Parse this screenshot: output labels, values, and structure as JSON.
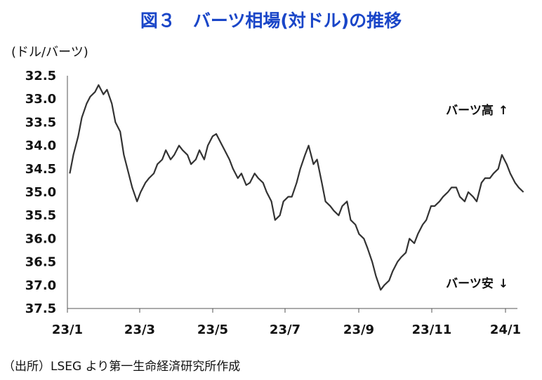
{
  "chart_data": {
    "type": "line",
    "title": "図３　バーツ相場(対ドル)の推移",
    "unit_label": "(ドル/バーツ)",
    "source": "（出所）LSEG より第一生命経済研究所作成",
    "yaxis_inverted": true,
    "ylim": [
      32.5,
      37.5
    ],
    "yticks": [
      "32.5",
      "33.0",
      "33.5",
      "34.0",
      "34.5",
      "35.0",
      "35.5",
      "36.0",
      "36.5",
      "37.0",
      "37.5"
    ],
    "xticks": [
      "23/1",
      "23/3",
      "23/5",
      "23/7",
      "23/9",
      "23/11",
      "24/1"
    ],
    "grid": false,
    "annotations": [
      {
        "text": "バーツ高",
        "arrow": "↑"
      },
      {
        "text": "バーツ安",
        "arrow": "↓"
      }
    ],
    "line_color": "#333333",
    "series": [
      {
        "x": [
          "2023-01-03",
          "2023-01-06",
          "2023-01-10",
          "2023-01-13",
          "2023-01-17",
          "2023-01-20",
          "2023-01-24",
          "2023-01-27",
          "2023-01-31",
          "2023-02-03",
          "2023-02-07",
          "2023-02-10",
          "2023-02-14",
          "2023-02-17",
          "2023-02-21",
          "2023-02-24",
          "2023-02-28",
          "2023-03-03",
          "2023-03-07",
          "2023-03-10",
          "2023-03-14",
          "2023-03-17",
          "2023-03-21",
          "2023-03-24",
          "2023-03-28",
          "2023-03-31",
          "2023-04-04",
          "2023-04-07",
          "2023-04-11",
          "2023-04-14",
          "2023-04-18",
          "2023-04-21",
          "2023-04-25",
          "2023-04-28",
          "2023-05-02",
          "2023-05-05",
          "2023-05-09",
          "2023-05-12",
          "2023-05-16",
          "2023-05-19",
          "2023-05-23",
          "2023-05-26",
          "2023-05-30",
          "2023-06-02",
          "2023-06-06",
          "2023-06-09",
          "2023-06-13",
          "2023-06-16",
          "2023-06-20",
          "2023-06-23",
          "2023-06-27",
          "2023-06-30",
          "2023-07-04",
          "2023-07-07",
          "2023-07-11",
          "2023-07-14",
          "2023-07-18",
          "2023-07-21",
          "2023-07-25",
          "2023-07-28",
          "2023-08-01",
          "2023-08-04",
          "2023-08-08",
          "2023-08-11",
          "2023-08-15",
          "2023-08-18",
          "2023-08-22",
          "2023-08-25",
          "2023-08-29",
          "2023-09-01",
          "2023-09-05",
          "2023-09-08",
          "2023-09-12",
          "2023-09-15",
          "2023-09-19",
          "2023-09-22",
          "2023-09-26",
          "2023-09-29",
          "2023-10-03",
          "2023-10-06",
          "2023-10-10",
          "2023-10-13",
          "2023-10-17",
          "2023-10-20",
          "2023-10-24",
          "2023-10-27",
          "2023-10-31",
          "2023-11-03",
          "2023-11-07",
          "2023-11-10",
          "2023-11-14",
          "2023-11-17",
          "2023-11-21",
          "2023-11-24",
          "2023-11-28",
          "2023-12-01",
          "2023-12-05",
          "2023-12-08",
          "2023-12-12",
          "2023-12-15",
          "2023-12-19",
          "2023-12-22",
          "2023-12-26",
          "2023-12-29",
          "2024-01-02",
          "2024-01-05",
          "2024-01-09",
          "2024-01-12",
          "2024-01-16"
        ],
        "y": [
          34.6,
          34.2,
          33.8,
          33.4,
          33.1,
          32.95,
          32.85,
          32.7,
          32.9,
          32.8,
          33.1,
          33.5,
          33.7,
          34.2,
          34.6,
          34.9,
          35.2,
          35.0,
          34.8,
          34.7,
          34.6,
          34.4,
          34.3,
          34.1,
          34.3,
          34.2,
          34.0,
          34.1,
          34.2,
          34.4,
          34.3,
          34.1,
          34.3,
          34.0,
          33.8,
          33.75,
          33.95,
          34.1,
          34.3,
          34.5,
          34.7,
          34.6,
          34.85,
          34.8,
          34.6,
          34.7,
          34.8,
          35.0,
          35.2,
          35.6,
          35.5,
          35.2,
          35.1,
          35.1,
          34.8,
          34.5,
          34.2,
          34.0,
          34.4,
          34.3,
          34.8,
          35.2,
          35.3,
          35.4,
          35.5,
          35.3,
          35.2,
          35.6,
          35.7,
          35.9,
          36.0,
          36.2,
          36.5,
          36.8,
          37.1,
          37.0,
          36.9,
          36.7,
          36.5,
          36.4,
          36.3,
          36.0,
          36.1,
          35.9,
          35.7,
          35.6,
          35.3,
          35.3,
          35.2,
          35.1,
          35.0,
          34.9,
          34.9,
          35.1,
          35.2,
          35.0,
          35.1,
          35.2,
          34.8,
          34.7,
          34.7,
          34.6,
          34.5,
          34.2,
          34.4,
          34.6,
          34.8,
          34.9,
          35.0
        ]
      }
    ]
  }
}
